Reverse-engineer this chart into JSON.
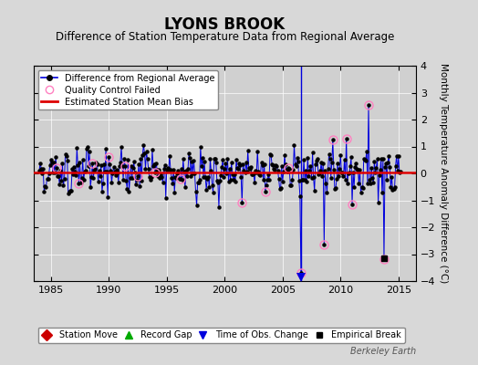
{
  "title": "LYONS BROOK",
  "subtitle": "Difference of Station Temperature Data from Regional Average",
  "ylabel": "Monthly Temperature Anomaly Difference (°C)",
  "xlim": [
    1983.5,
    2016.5
  ],
  "ylim": [
    -4,
    4
  ],
  "yticks": [
    -4,
    -3,
    -2,
    -1,
    0,
    1,
    2,
    3,
    4
  ],
  "xticks": [
    1985,
    1990,
    1995,
    2000,
    2005,
    2010,
    2015
  ],
  "bg_color": "#d8d8d8",
  "plot_bg": "#d0d0d0",
  "bias_line_y": 0.05,
  "title_fontsize": 12,
  "subtitle_fontsize": 8.5,
  "watermark": "Berkeley Earth",
  "time_of_obs_x": 2006.58,
  "empirical_break_x": 2013.75,
  "empirical_break_y": -3.15,
  "qc_color": "#ff80c0",
  "line_color": "#0000dd",
  "bias_color": "#dd0000",
  "marker_color": "#000000",
  "grid_color": "#ffffff",
  "tick_labelsize": 8,
  "seed": 42
}
